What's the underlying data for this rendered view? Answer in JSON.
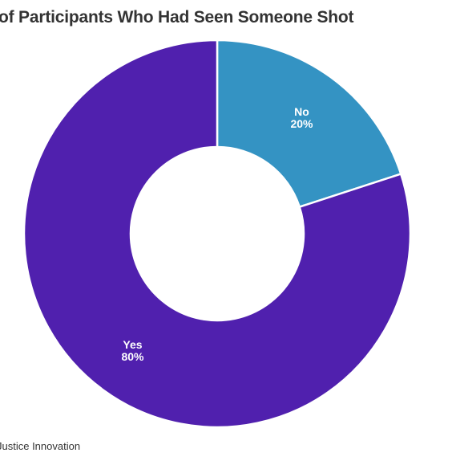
{
  "chart_data": {
    "type": "pie",
    "title": "of Participants Who Had Seen Someone Shot",
    "categories": [
      "No",
      "Yes"
    ],
    "values": [
      20,
      80
    ],
    "labels": [
      "20%",
      "80%"
    ],
    "colors": [
      "#3493c3",
      "#5020ae"
    ],
    "donut": true,
    "legend": "none"
  },
  "source_note": "Justice Innovation"
}
